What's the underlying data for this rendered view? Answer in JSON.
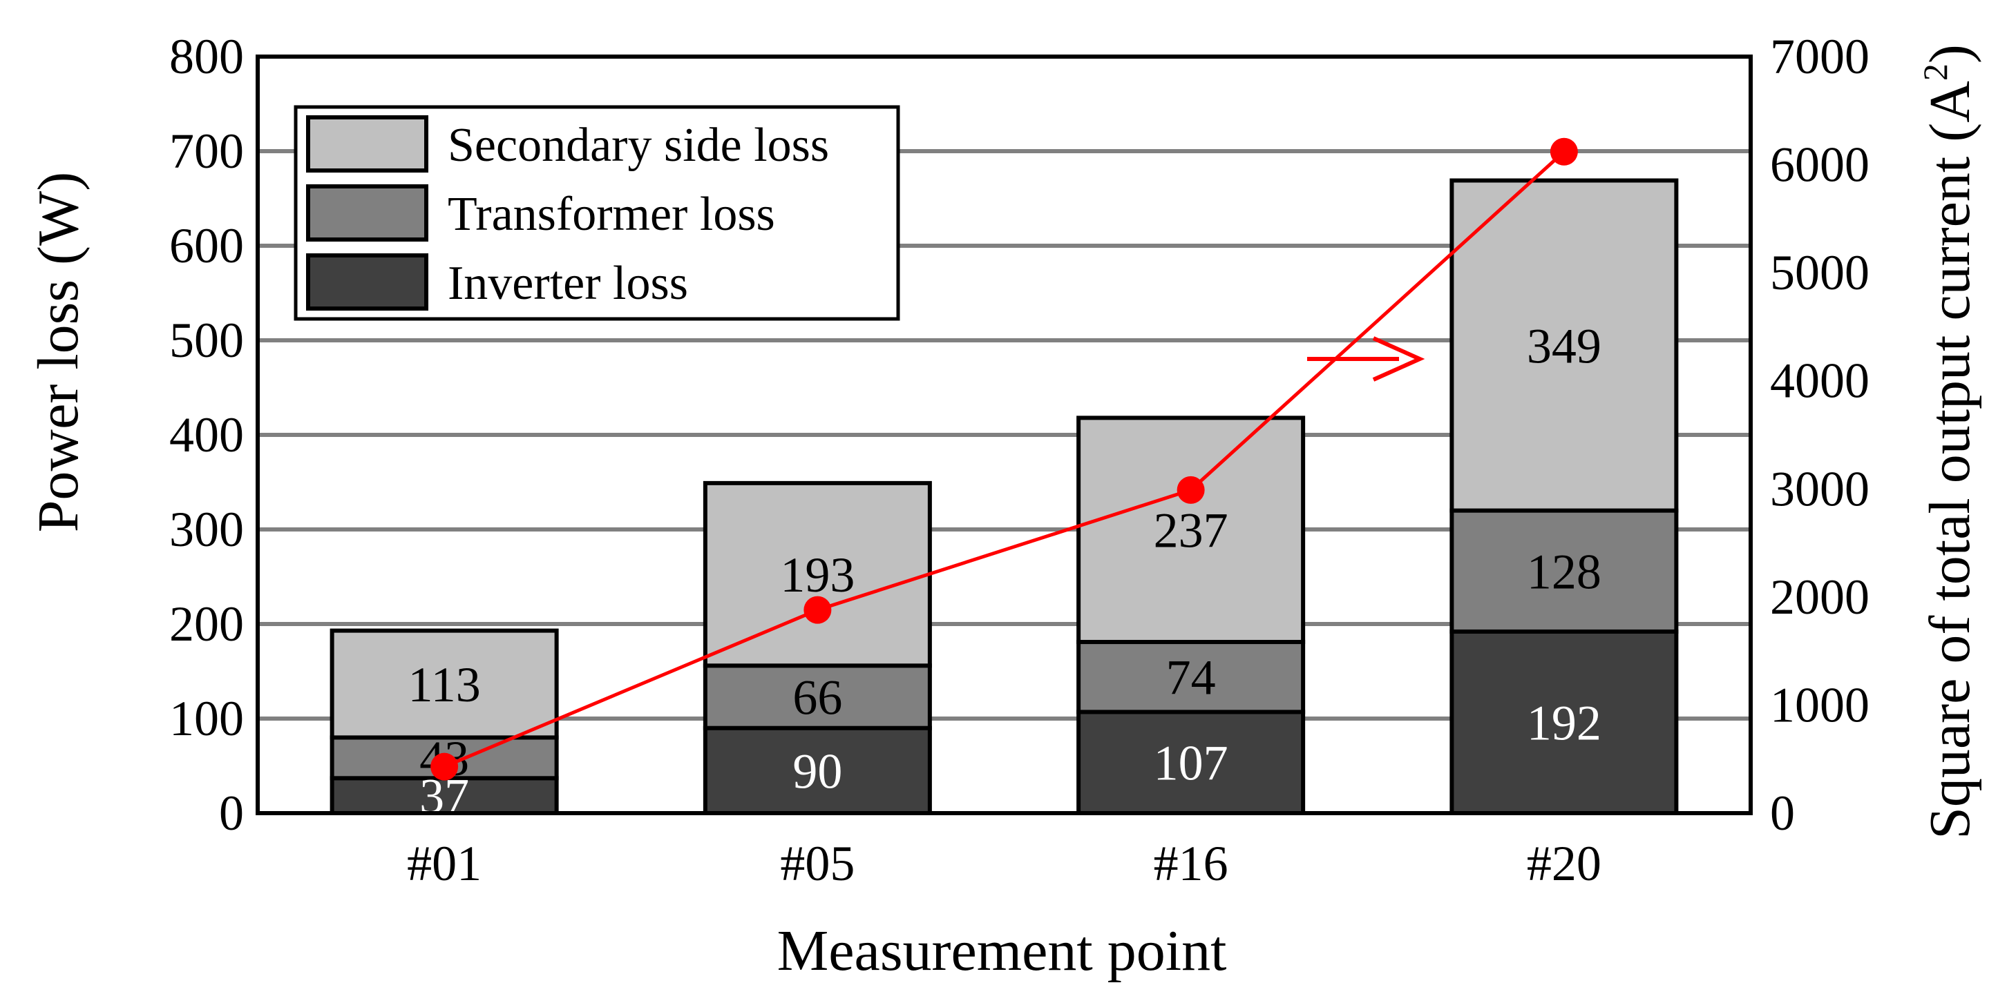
{
  "chart_data": {
    "type": "bar",
    "stacked": true,
    "categories": [
      "#01",
      "#05",
      "#16",
      "#20"
    ],
    "series": [
      {
        "name": "Inverter loss",
        "values": [
          37,
          90,
          107,
          192
        ],
        "color": "#404040",
        "label_color": "#ffffff"
      },
      {
        "name": "Transformer loss",
        "values": [
          43,
          66,
          74,
          128
        ],
        "color": "#808080",
        "label_color": "#000000"
      },
      {
        "name": "Secondary side loss",
        "values": [
          113,
          193,
          237,
          349
        ],
        "color": "#c0c0c0",
        "label_color": "#000000"
      }
    ],
    "line_series": {
      "axis": "right",
      "values": [
        430,
        1880,
        2990,
        6120
      ],
      "color": "#ff0000"
    },
    "xlabel": "Measurement point",
    "ylabel": "Power loss (W)",
    "y2label_text": "Square of total output current (A",
    "y2label_sup": "2",
    "y2label_close": ")",
    "ylim": [
      0,
      800
    ],
    "yticks": [
      "0",
      "100",
      "200",
      "300",
      "400",
      "500",
      "600",
      "700",
      "800"
    ],
    "y2lim": [
      0,
      7000
    ],
    "y2ticks": [
      "0",
      "1000",
      "2000",
      "3000",
      "4000",
      "5000",
      "6000",
      "7000"
    ],
    "grid": true,
    "legend_position": "top-left",
    "legend_order": [
      "Secondary side loss",
      "Transformer loss",
      "Inverter loss"
    ]
  }
}
